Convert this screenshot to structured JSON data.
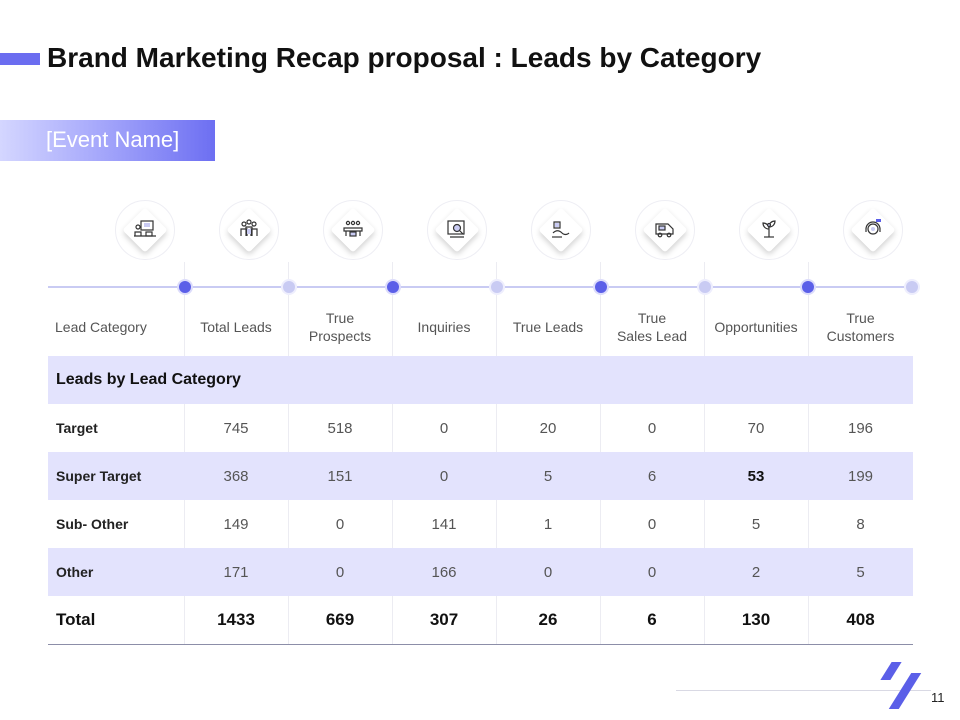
{
  "title": "Brand Marketing Recap proposal : Leads by Category",
  "event_name": "[Event Name]",
  "icons": [
    "presentation-icon",
    "team-icon",
    "meeting-icon",
    "inquiry-icon",
    "handshake-icon",
    "sales-van-icon",
    "growth-plant-icon",
    "customer-support-icon"
  ],
  "headers": [
    "Lead Category",
    "Total Leads",
    "True\nProspects",
    "Inquiries",
    "True Leads",
    "True\nSales Lead",
    "Opportunities",
    "True\nCustomers"
  ],
  "section_label": "Leads by Lead Category",
  "rows": [
    {
      "label": "Target",
      "cells": [
        "745",
        "518",
        "0",
        "20",
        "0",
        "70",
        "196"
      ]
    },
    {
      "label": "Super Target",
      "cells": [
        "368",
        "151",
        "0",
        "5",
        "6",
        "53",
        "199"
      ]
    },
    {
      "label": "Sub- Other",
      "cells": [
        "149",
        "0",
        "141",
        "1",
        "0",
        "5",
        "8"
      ]
    },
    {
      "label": "Other",
      "cells": [
        "171",
        "0",
        "166",
        "0",
        "0",
        "2",
        "5"
      ]
    }
  ],
  "total": {
    "label": "Total",
    "cells": [
      "1433",
      "669",
      "307",
      "26",
      "6",
      "130",
      "408"
    ]
  },
  "page_number": "11",
  "colors": {
    "accent": "#5b5fe8",
    "row_shade": "#e3e3fd",
    "timeline_soft": "#c9cbf3"
  }
}
